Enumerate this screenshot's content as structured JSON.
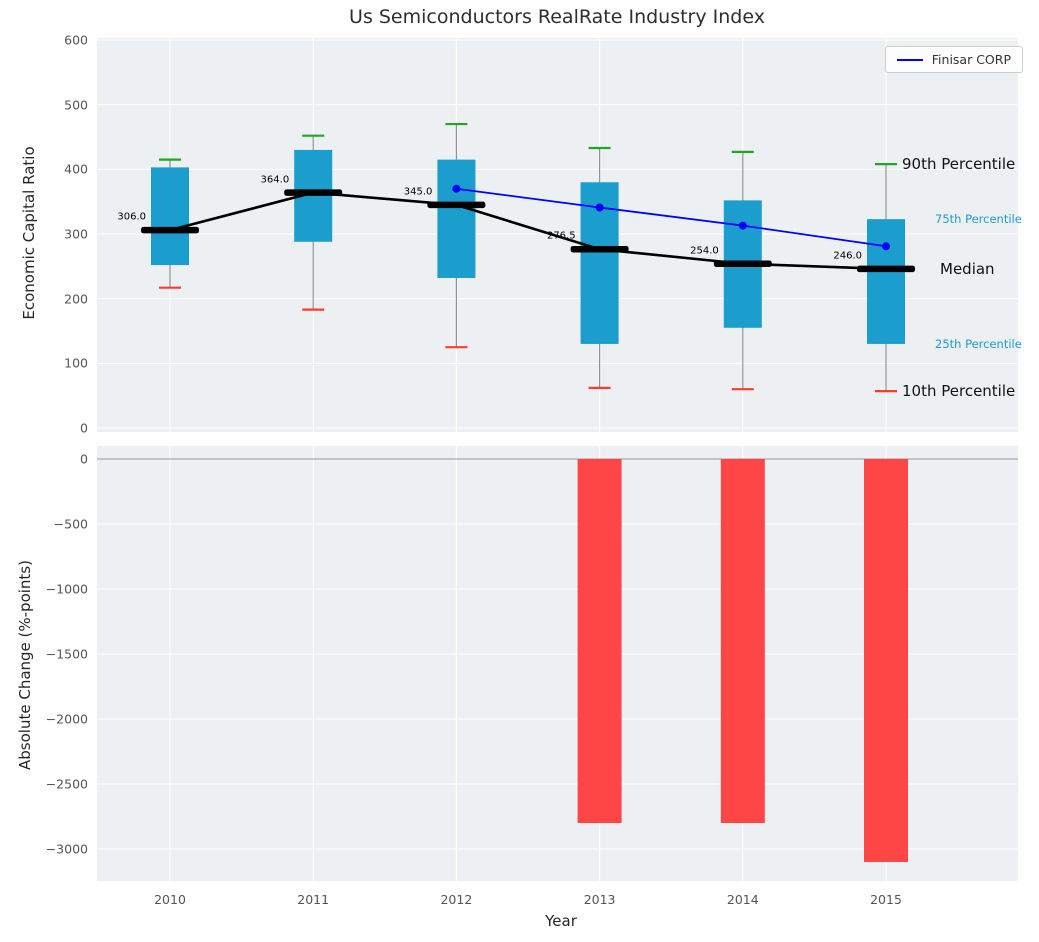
{
  "title": "Us Semiconductors RealRate Industry Index",
  "legend": {
    "label": "Finisar CORP"
  },
  "axes": {
    "x_label": "Year",
    "top_y_label": "Economic Capital Ratio",
    "bottom_y_label": "Absolute Change (%-points)"
  },
  "right_annotations": [
    {
      "text": "90th Percentile",
      "anchor": "p90",
      "size": "large",
      "color": "#111111"
    },
    {
      "text": "75th Percentile",
      "anchor": "p75",
      "size": "small",
      "color": "#1b9dce"
    },
    {
      "text": "Median",
      "anchor": "median",
      "size": "large",
      "color": "#111111"
    },
    {
      "text": "25th Percentile",
      "anchor": "p25",
      "size": "small",
      "color": "#1b9dce"
    },
    {
      "text": "10th Percentile",
      "anchor": "p10",
      "size": "large",
      "color": "#111111"
    }
  ],
  "colors": {
    "box_fill": "#1b9dce",
    "p90_cap": "#22a522",
    "p10_cap": "#ff3b30",
    "median": "#000000",
    "median_line": "#000000",
    "finisar_line": "#0000ff",
    "bar_fill": "#ff4646",
    "whisker": "#8c8c8c",
    "panel_bg": "#edf0f2",
    "grid": "#ffffff",
    "zero_line": "#aaaaaa"
  },
  "chart_data": [
    {
      "type": "box",
      "panel": "top",
      "title": "Us Semiconductors RealRate Industry Index",
      "ylabel": "Economic Capital Ratio",
      "ylim": [
        0,
        600
      ],
      "yticks": [
        0,
        100,
        200,
        300,
        400,
        500,
        600
      ],
      "categories": [
        "2010",
        "2011",
        "2012",
        "2013",
        "2014",
        "2015"
      ],
      "boxes": [
        {
          "year": "2010",
          "p10": 217,
          "p25": 252,
          "median": 306.0,
          "p75": 403,
          "p90": 415,
          "median_label": "306.0"
        },
        {
          "year": "2011",
          "p10": 183,
          "p25": 288,
          "median": 364.0,
          "p75": 430,
          "p90": 452,
          "median_label": "364.0"
        },
        {
          "year": "2012",
          "p10": 125,
          "p25": 232,
          "median": 345.0,
          "p75": 415,
          "p90": 470,
          "median_label": "345.0"
        },
        {
          "year": "2013",
          "p10": 62,
          "p25": 130,
          "median": 276.5,
          "p75": 380,
          "p90": 433,
          "median_label": "276.5"
        },
        {
          "year": "2014",
          "p10": 60,
          "p25": 155,
          "median": 254.0,
          "p75": 352,
          "p90": 427,
          "median_label": "254.0"
        },
        {
          "year": "2015",
          "p10": 57,
          "p25": 130,
          "median": 246.0,
          "p75": 323,
          "p90": 408,
          "median_label": "246.0"
        }
      ],
      "series": [
        {
          "name": "Median",
          "type": "line",
          "x": [
            "2010",
            "2011",
            "2012",
            "2013",
            "2014",
            "2015"
          ],
          "values": [
            306.0,
            364.0,
            345.0,
            276.5,
            254.0,
            246.0
          ]
        },
        {
          "name": "Finisar CORP",
          "type": "line",
          "x": [
            "2012",
            "2013",
            "2014",
            "2015"
          ],
          "values": [
            370,
            341,
            313,
            281
          ]
        }
      ],
      "legend_position": "upper right"
    },
    {
      "type": "bar",
      "panel": "bottom",
      "ylabel": "Absolute Change (%-points)",
      "xlabel": "Year",
      "ylim": [
        -3250,
        100
      ],
      "yticks": [
        0,
        -500,
        -1000,
        -1500,
        -2000,
        -2500,
        -3000
      ],
      "categories": [
        "2010",
        "2011",
        "2012",
        "2013",
        "2014",
        "2015"
      ],
      "values": [
        0,
        0,
        0,
        -2800,
        -2800,
        -3100
      ]
    }
  ]
}
